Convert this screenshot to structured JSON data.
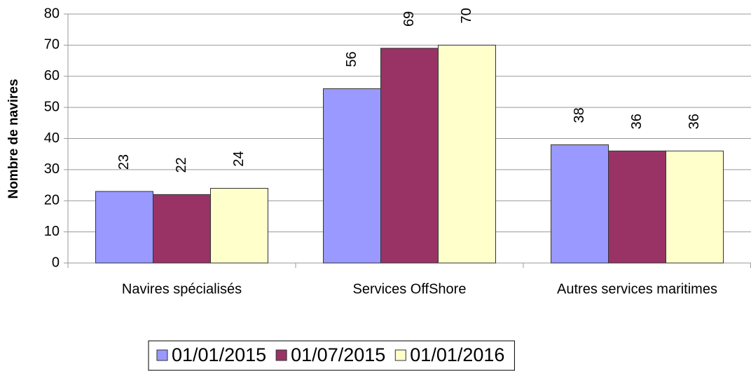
{
  "chart_data": {
    "type": "bar",
    "y_label": "Nombre de navires",
    "categories": [
      "Navires spécialisés",
      "Services OffShore",
      "Autres services maritimes"
    ],
    "series": [
      {
        "name": "01/01/2015",
        "color": "#9999ff",
        "values": [
          23,
          56,
          38
        ]
      },
      {
        "name": "01/07/2015",
        "color": "#993366",
        "values": [
          22,
          69,
          36
        ]
      },
      {
        "name": "01/01/2016",
        "color": "#ffffcc",
        "values": [
          24,
          70,
          36
        ]
      }
    ],
    "ylim": [
      0,
      80
    ],
    "yticks": [
      0,
      10,
      20,
      30,
      40,
      50,
      60,
      70,
      80
    ],
    "grid": true,
    "legend": "bottom"
  }
}
